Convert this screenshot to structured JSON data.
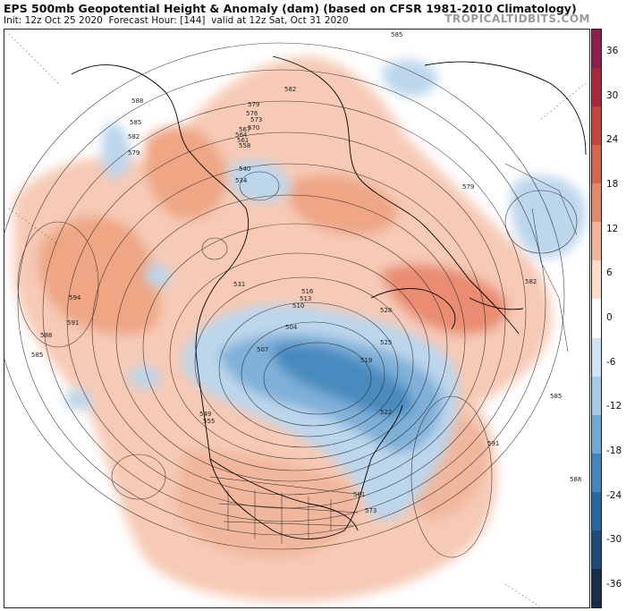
{
  "header": {
    "title": "EPS 500mb Geopotential Height & Anomaly (dam) (based on CFSR 1981-2010 Climatology)",
    "init": "Init: 12z Oct 25 2020",
    "forecast": "Forecast Hour: [144]",
    "valid": "valid at 12z Sat, Oct 31 2020",
    "brand": "TROPICALTIDBITS.COM"
  },
  "colorbar": {
    "ticks": [
      "36",
      "30",
      "24",
      "18",
      "12",
      "6",
      "0",
      "-6",
      "-12",
      "-18",
      "-24",
      "-30",
      "-36"
    ],
    "colors": [
      "#8a1e4d",
      "#a52a3c",
      "#c2463c",
      "#d4664c",
      "#e38a6a",
      "#f1b498",
      "#fbdccb",
      "#ffffff",
      "#cfe3f2",
      "#a6cbe6",
      "#72a9d2",
      "#4486bb",
      "#2a67a0",
      "#1f4b7a",
      "#182e46"
    ]
  },
  "contour_labels": [
    "585",
    "582",
    "579",
    "576",
    "573",
    "570",
    "567",
    "564",
    "561",
    "558",
    "540",
    "534",
    "531",
    "528",
    "525",
    "522",
    "519",
    "516",
    "513",
    "510",
    "507",
    "504",
    "588",
    "591",
    "594",
    "585",
    "582",
    "579",
    "585",
    "588",
    "591",
    "588",
    "585",
    "582",
    "579",
    "573",
    "561",
    "555",
    "549"
  ]
}
